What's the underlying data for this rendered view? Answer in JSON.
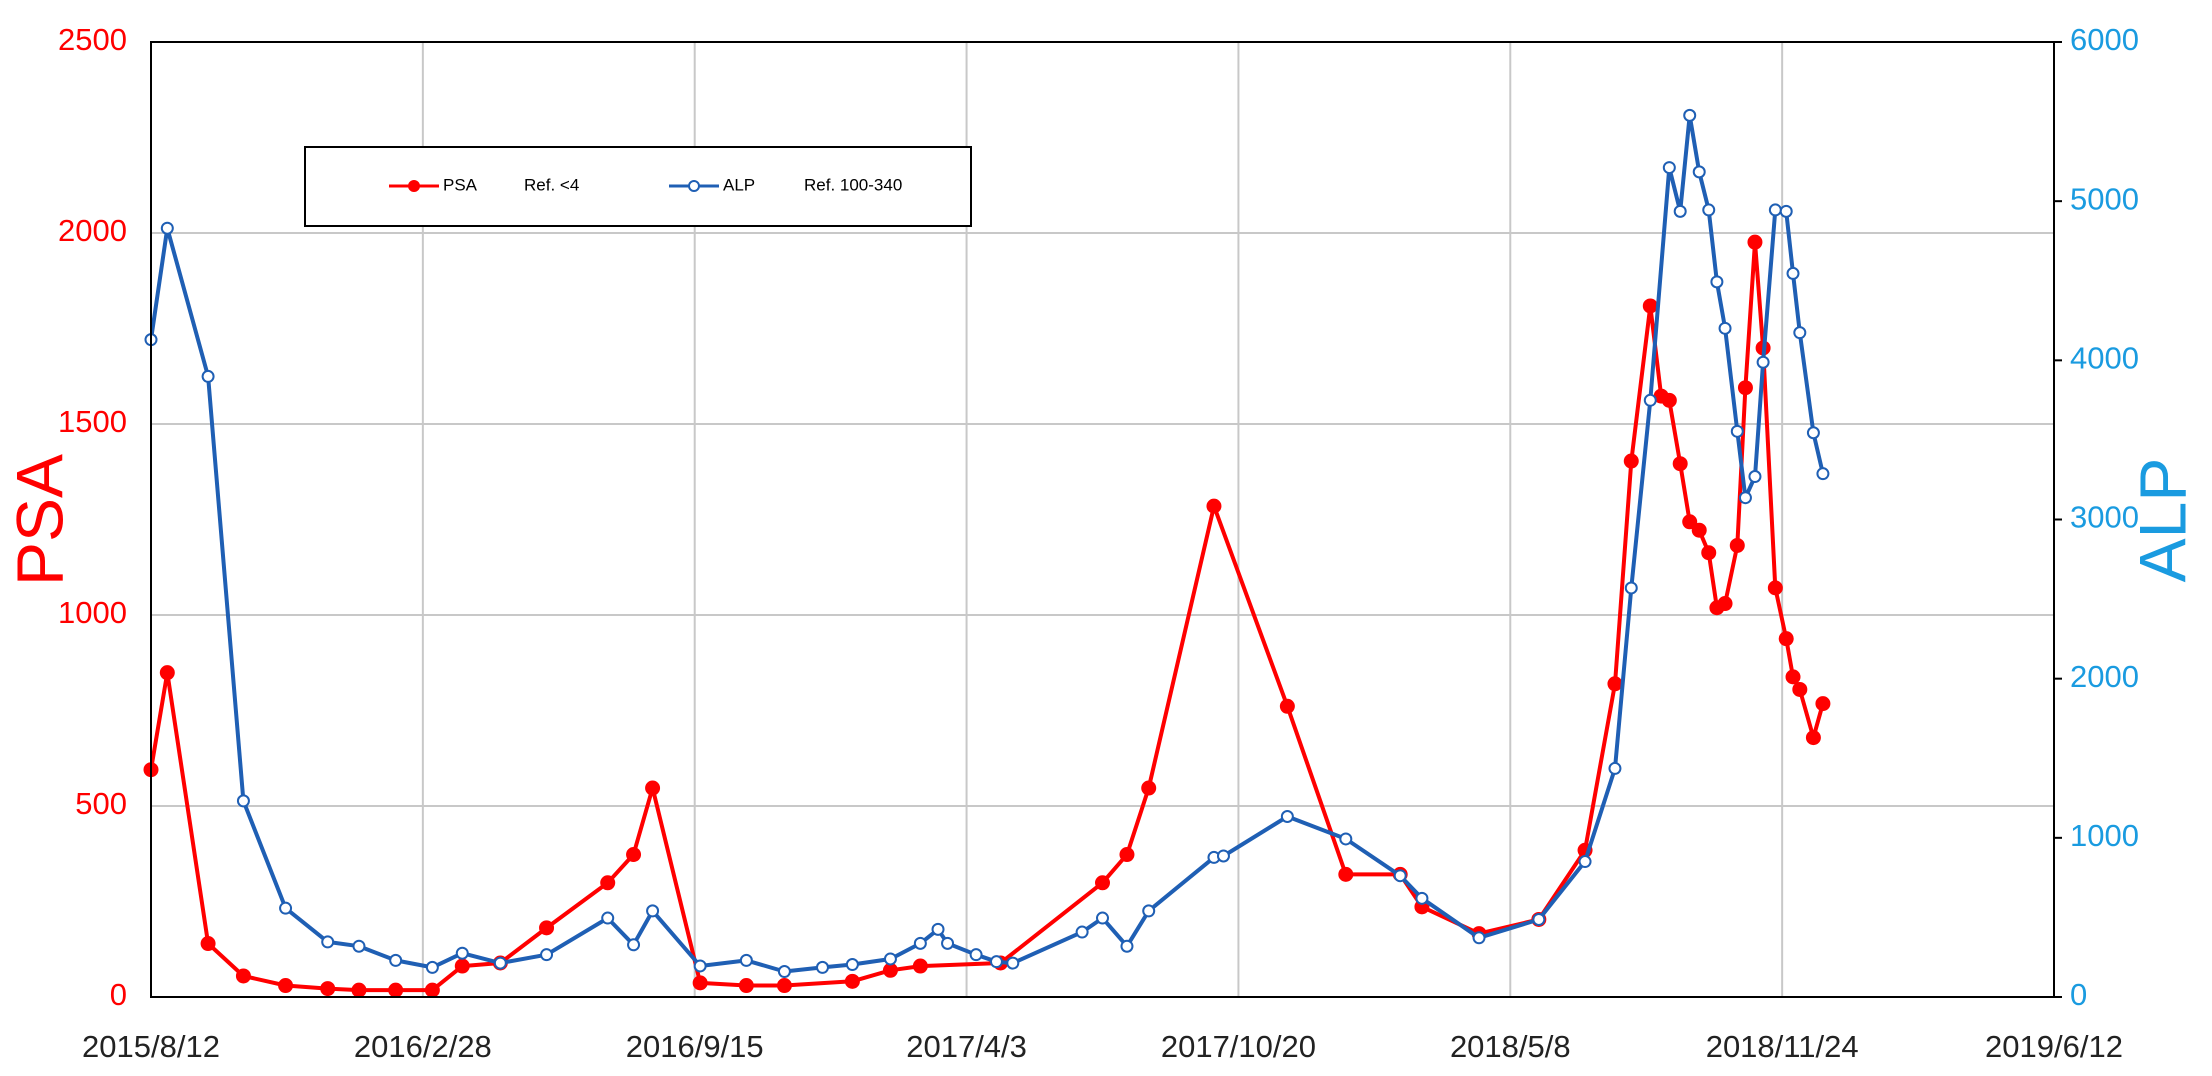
{
  "chart_data": {
    "type": "line",
    "xlim": [
      "2015/8/12",
      "2019/6/12"
    ],
    "xticks": [
      "2015/8/12",
      "2016/2/28",
      "2016/9/15",
      "2017/4/3",
      "2017/10/20",
      "2018/5/8",
      "2018/11/24",
      "2019/6/12"
    ],
    "ylim": [
      0,
      2500
    ],
    "yticks": [
      0,
      500,
      1000,
      1500,
      2000,
      2500
    ],
    "y2lim": [
      0,
      6000
    ],
    "y2ticks": [
      0,
      1000,
      2000,
      3000,
      4000,
      5000,
      6000
    ],
    "ylabel": "PSA",
    "y2label": "ALP",
    "ycolor": "#ff0000",
    "y2color": "#1a9be0",
    "grid": true,
    "series": [
      {
        "name": "PSA",
        "ref": "Ref. <4",
        "color": "#ff0000",
        "marker": "filled",
        "x": [
          "2015/8/12",
          "2015/8/24",
          "2015/9/23",
          "2015/10/19",
          "2015/11/19",
          "2015/12/20",
          "2016/1/12",
          "2016/2/8",
          "2016/3/6",
          "2016/3/28",
          "2016/4/25",
          "2016/5/29",
          "2016/7/13",
          "2016/8/1",
          "2016/8/15",
          "2016/9/19",
          "2016/10/23",
          "2016/11/20",
          "2017/1/9",
          "2017/2/6",
          "2017/2/28",
          "2017/4/28",
          "2017/7/12",
          "2017/7/30",
          "2017/8/15",
          "2017/10/2",
          "2017/11/25",
          "2018/1/7",
          "2018/2/16",
          "2018/3/4",
          "2018/4/15",
          "2018/5/29",
          "2018/7/2",
          "2018/7/24",
          "2018/8/5",
          "2018/8/19",
          "2018/8/27",
          "2018/9/2",
          "2018/9/10",
          "2018/9/17",
          "2018/9/24",
          "2018/10/1",
          "2018/10/7",
          "2018/10/13",
          "2018/10/22",
          "2018/10/28",
          "2018/11/4",
          "2018/11/10",
          "2018/11/19",
          "2018/11/27",
          "2018/12/2",
          "2018/12/7",
          "2018/12/17",
          "2018/12/24"
        ],
        "values": [
          595,
          849,
          140,
          55,
          30,
          22,
          18,
          18,
          18,
          81,
          89,
          181,
          299,
          373,
          547,
          37,
          30,
          30,
          41,
          70,
          81,
          89,
          299,
          373,
          547,
          1285,
          761,
          321,
          321,
          236,
          166,
          203,
          384,
          820,
          1403,
          1809,
          1573,
          1562,
          1396,
          1244,
          1222,
          1163,
          1019,
          1030,
          1182,
          1595,
          1976,
          1699,
          1071,
          938,
          838,
          805,
          679,
          768
        ]
      },
      {
        "name": "ALP",
        "ref": "Ref. 100-340",
        "color": "#1f5fb4",
        "marker": "open",
        "axis": "y2",
        "x": [
          "2015/8/12",
          "2015/8/24",
          "2015/9/23",
          "2015/10/19",
          "2015/11/19",
          "2015/12/20",
          "2016/1/12",
          "2016/2/8",
          "2016/3/6",
          "2016/3/28",
          "2016/4/25",
          "2016/5/29",
          "2016/7/13",
          "2016/8/1",
          "2016/8/15",
          "2016/9/19",
          "2016/10/23",
          "2016/11/20",
          "2016/12/18",
          "2017/1/9",
          "2017/2/6",
          "2017/2/28",
          "2017/3/13",
          "2017/3/20",
          "2017/4/10",
          "2017/4/25",
          "2017/5/7",
          "2017/6/27",
          "2017/7/12",
          "2017/7/30",
          "2017/8/15",
          "2017/10/2",
          "2017/10/9",
          "2017/11/25",
          "2018/1/7",
          "2018/2/16",
          "2018/3/4",
          "2018/4/15",
          "2018/5/29",
          "2018/7/2",
          "2018/7/24",
          "2018/8/5",
          "2018/8/19",
          "2018/9/2",
          "2018/9/10",
          "2018/9/17",
          "2018/9/24",
          "2018/10/1",
          "2018/10/7",
          "2018/10/13",
          "2018/10/22",
          "2018/10/28",
          "2018/11/4",
          "2018/11/10",
          "2018/11/19",
          "2018/11/27",
          "2018/12/2",
          "2018/12/7",
          "2018/12/17",
          "2018/12/24"
        ],
        "values": [
          4130,
          4830,
          3899,
          1232,
          558,
          346,
          319,
          230,
          186,
          275,
          213,
          266,
          496,
          328,
          541,
          195,
          230,
          160,
          186,
          204,
          239,
          337,
          425,
          337,
          266,
          222,
          213,
          408,
          496,
          319,
          541,
          877,
          886,
          1134,
          993,
          762,
          620,
          372,
          487,
          851,
          1436,
          2570,
          3749,
          5211,
          4936,
          5539,
          5184,
          4945,
          4493,
          4201,
          3554,
          3137,
          3270,
          3988,
          4945,
          4936,
          4546,
          4174,
          3545,
          3288
        ]
      }
    ]
  }
}
